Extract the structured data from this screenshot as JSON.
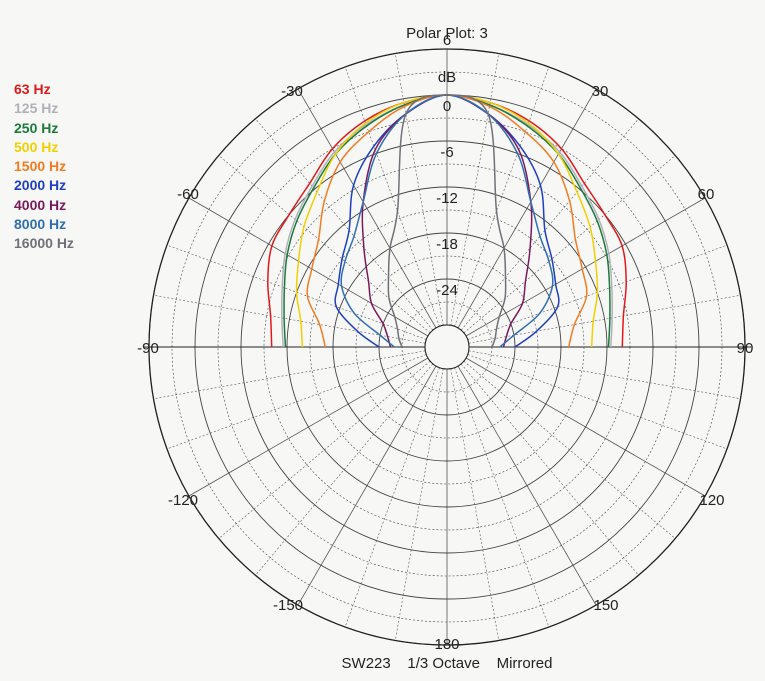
{
  "chart_data": {
    "type": "polar",
    "title": "Polar Plot: 3",
    "footer": "SW223    1/3 Octave    Mirrored",
    "radial_unit": "dB",
    "radial_range": [
      -30,
      6
    ],
    "radial_ticks": [
      6,
      0,
      -6,
      -12,
      -18,
      -24
    ],
    "angle_ticks": [
      -30,
      30,
      -60,
      60,
      -90,
      90,
      -120,
      120,
      -150,
      150,
      180
    ],
    "angle_tick_labels": [
      "-30",
      "30",
      "-60",
      "60",
      "-90",
      "90",
      "-120",
      "120",
      "-150",
      "150",
      "180"
    ],
    "grid": true,
    "legend_position": "left",
    "angles": [
      0,
      10,
      20,
      30,
      40,
      50,
      60,
      70,
      80,
      90
    ],
    "series": [
      {
        "name": "63 Hz",
        "color": "#e0191b",
        "values": [
          0,
          -0.5,
          -1.5,
          -3,
          -5,
          -6,
          -6.5,
          -8,
          -9.5,
          -10
        ]
      },
      {
        "name": "125 Hz",
        "color": "#b0b0b8",
        "values": [
          0,
          -0.8,
          -2,
          -3.5,
          -5.5,
          -7,
          -8.5,
          -10,
          -11,
          -11.5
        ]
      },
      {
        "name": "250 Hz",
        "color": "#1b7a3a",
        "values": [
          0,
          -0.8,
          -2.2,
          -3.8,
          -5.8,
          -7.3,
          -8.8,
          -10.3,
          -11.3,
          -11.8
        ]
      },
      {
        "name": "500 Hz",
        "color": "#f2d000",
        "values": [
          0,
          -0.5,
          -1.8,
          -3.8,
          -6.5,
          -8.5,
          -10.5,
          -12,
          -13.5,
          -14
        ]
      },
      {
        "name": "1500 Hz",
        "color": "#f47c20",
        "values": [
          0,
          -1,
          -3,
          -5,
          -8,
          -11,
          -12.5,
          -13.5,
          -16,
          -17
        ]
      },
      {
        "name": "2000 Hz",
        "color": "#1f3fbf",
        "values": [
          0,
          -2,
          -5,
          -8.5,
          -13,
          -15,
          -16.5,
          -17.5,
          -21,
          -24
        ]
      },
      {
        "name": "4000 Hz",
        "color": "#7a1a5a",
        "values": [
          0,
          -2,
          -5.5,
          -11,
          -16,
          -19.5,
          -21.5,
          -24,
          -25,
          -25.5
        ]
      },
      {
        "name": "8000 Hz",
        "color": "#2f6fb0",
        "values": [
          0,
          -2,
          -6,
          -11,
          -14,
          -15.5,
          -17,
          -20,
          -24,
          -26
        ]
      },
      {
        "name": "16000 Hz",
        "color": "#707078",
        "values": [
          0,
          -2,
          -14,
          -18,
          -21,
          -23,
          -25,
          -26,
          -26.5,
          -27
        ]
      }
    ]
  }
}
